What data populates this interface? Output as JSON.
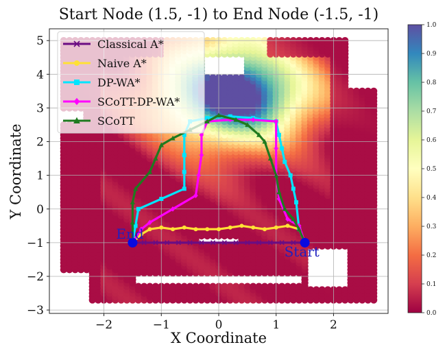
{
  "chart_data": {
    "type": "scatter",
    "title": "Start Node (1.5, -1) to End Node (-1.5, -1)",
    "xlabel": "X Coordinate",
    "ylabel": "Y Coordinate",
    "xlim": [
      -2.95,
      2.95
    ],
    "ylim": [
      -3.1,
      5.35
    ],
    "x_ticks": [
      -2,
      -1,
      0,
      1,
      2
    ],
    "x_tick_labels": [
      "−2",
      "−1",
      "0",
      "1",
      "2"
    ],
    "y_ticks": [
      -3,
      -2,
      -1,
      0,
      1,
      2,
      3,
      4,
      5
    ],
    "y_tick_labels": [
      "−3",
      "−2",
      "−1",
      "0",
      "1",
      "2",
      "3",
      "4",
      "5"
    ],
    "grid": true,
    "legend_position": "top-left",
    "colorbar": {
      "colormap": "Spectral",
      "range": [
        0.0,
        1.0
      ],
      "tick_labels": [
        "0.0",
        "0.1",
        "0.2",
        "0.3",
        "0.4",
        "0.5",
        "0.6",
        "0.7",
        "0.8",
        "0.9",
        "1.0"
      ]
    },
    "background": {
      "description_free": true,
      "x_range": [
        -2.7,
        2.7
      ],
      "y_range": [
        -2.7,
        5.0
      ],
      "step": 0.1
    },
    "series": [
      {
        "name": "Classical A*",
        "color": "#6a0d83",
        "marker": "x",
        "points": [
          [
            1.5,
            -1
          ],
          [
            1.3,
            -1
          ],
          [
            1.1,
            -1
          ],
          [
            0.9,
            -1
          ],
          [
            0.7,
            -1
          ],
          [
            0.5,
            -1
          ],
          [
            0.3,
            -1
          ],
          [
            0.1,
            -1
          ],
          [
            -0.1,
            -1
          ],
          [
            -0.3,
            -1
          ],
          [
            -0.5,
            -1
          ],
          [
            -0.7,
            -1
          ],
          [
            -0.9,
            -1
          ],
          [
            -1.1,
            -1
          ],
          [
            -1.3,
            -1
          ],
          [
            -1.5,
            -1
          ]
        ]
      },
      {
        "name": "Naive A*",
        "color": "#ffe135",
        "marker": "o",
        "points": [
          [
            1.5,
            -1
          ],
          [
            1.4,
            -0.6
          ],
          [
            1.2,
            -0.5
          ],
          [
            1.0,
            -0.55
          ],
          [
            0.8,
            -0.6
          ],
          [
            0.6,
            -0.55
          ],
          [
            0.4,
            -0.5
          ],
          [
            0.2,
            -0.55
          ],
          [
            0.0,
            -0.6
          ],
          [
            -0.2,
            -0.6
          ],
          [
            -0.4,
            -0.6
          ],
          [
            -0.6,
            -0.55
          ],
          [
            -0.8,
            -0.6
          ],
          [
            -1.0,
            -0.55
          ],
          [
            -1.2,
            -0.6
          ],
          [
            -1.35,
            -0.75
          ],
          [
            -1.5,
            -1
          ]
        ]
      },
      {
        "name": "DP-WA*",
        "color": "#00e5ff",
        "marker": "s",
        "points": [
          [
            1.5,
            -1
          ],
          [
            1.4,
            -0.6
          ],
          [
            1.35,
            0.2
          ],
          [
            1.3,
            0.6
          ],
          [
            1.25,
            1.0
          ],
          [
            1.15,
            1.4
          ],
          [
            1.1,
            1.8
          ],
          [
            1.05,
            2.2
          ],
          [
            1.0,
            2.6
          ],
          [
            0.6,
            2.7
          ],
          [
            0.2,
            2.75
          ],
          [
            -0.2,
            2.7
          ],
          [
            -0.5,
            2.6
          ],
          [
            -0.6,
            2.2
          ],
          [
            -0.6,
            1.6
          ],
          [
            -0.6,
            1.1
          ],
          [
            -0.6,
            0.6
          ],
          [
            -1.0,
            0.3
          ],
          [
            -1.4,
            0.0
          ],
          [
            -1.45,
            -0.5
          ],
          [
            -1.5,
            -1
          ]
        ]
      },
      {
        "name": "SCoTT-DP-WA*",
        "color": "#ff00ff",
        "marker": "D",
        "points": [
          [
            1.5,
            -1
          ],
          [
            1.4,
            -0.5
          ],
          [
            1.2,
            -0.3
          ],
          [
            1.05,
            0.3
          ],
          [
            1.0,
            1.0
          ],
          [
            1.0,
            1.8
          ],
          [
            1.0,
            2.6
          ],
          [
            0.6,
            2.65
          ],
          [
            0.2,
            2.65
          ],
          [
            -0.2,
            2.6
          ],
          [
            -0.3,
            2.2
          ],
          [
            -0.3,
            1.6
          ],
          [
            -0.35,
            1.0
          ],
          [
            -0.4,
            0.4
          ],
          [
            -0.8,
            0.0
          ],
          [
            -1.2,
            -0.4
          ],
          [
            -1.35,
            -0.6
          ],
          [
            -1.5,
            -1
          ]
        ]
      },
      {
        "name": "SCoTT",
        "color": "#1f7a1f",
        "marker": "^",
        "points": [
          [
            1.5,
            -1
          ],
          [
            1.4,
            -0.6
          ],
          [
            1.3,
            -0.3
          ],
          [
            1.15,
            0.0
          ],
          [
            1.05,
            0.5
          ],
          [
            1.0,
            1.0
          ],
          [
            0.9,
            1.5
          ],
          [
            0.8,
            2.0
          ],
          [
            0.7,
            2.2
          ],
          [
            0.5,
            2.5
          ],
          [
            0.3,
            2.65
          ],
          [
            0.0,
            2.78
          ],
          [
            -0.2,
            2.6
          ],
          [
            -0.5,
            2.35
          ],
          [
            -0.8,
            2.1
          ],
          [
            -1.0,
            1.9
          ],
          [
            -1.1,
            1.5
          ],
          [
            -1.2,
            1.1
          ],
          [
            -1.45,
            0.6
          ],
          [
            -1.5,
            0.2
          ],
          [
            -1.5,
            -0.4
          ],
          [
            -1.5,
            -1
          ]
        ]
      }
    ],
    "annotations": [
      {
        "text": "End",
        "x": -1.5,
        "y": -1
      },
      {
        "text": "Start",
        "x": 1.5,
        "y": -1
      }
    ],
    "endpoints": [
      [
        -1.5,
        -1
      ],
      [
        1.5,
        -1
      ]
    ]
  }
}
